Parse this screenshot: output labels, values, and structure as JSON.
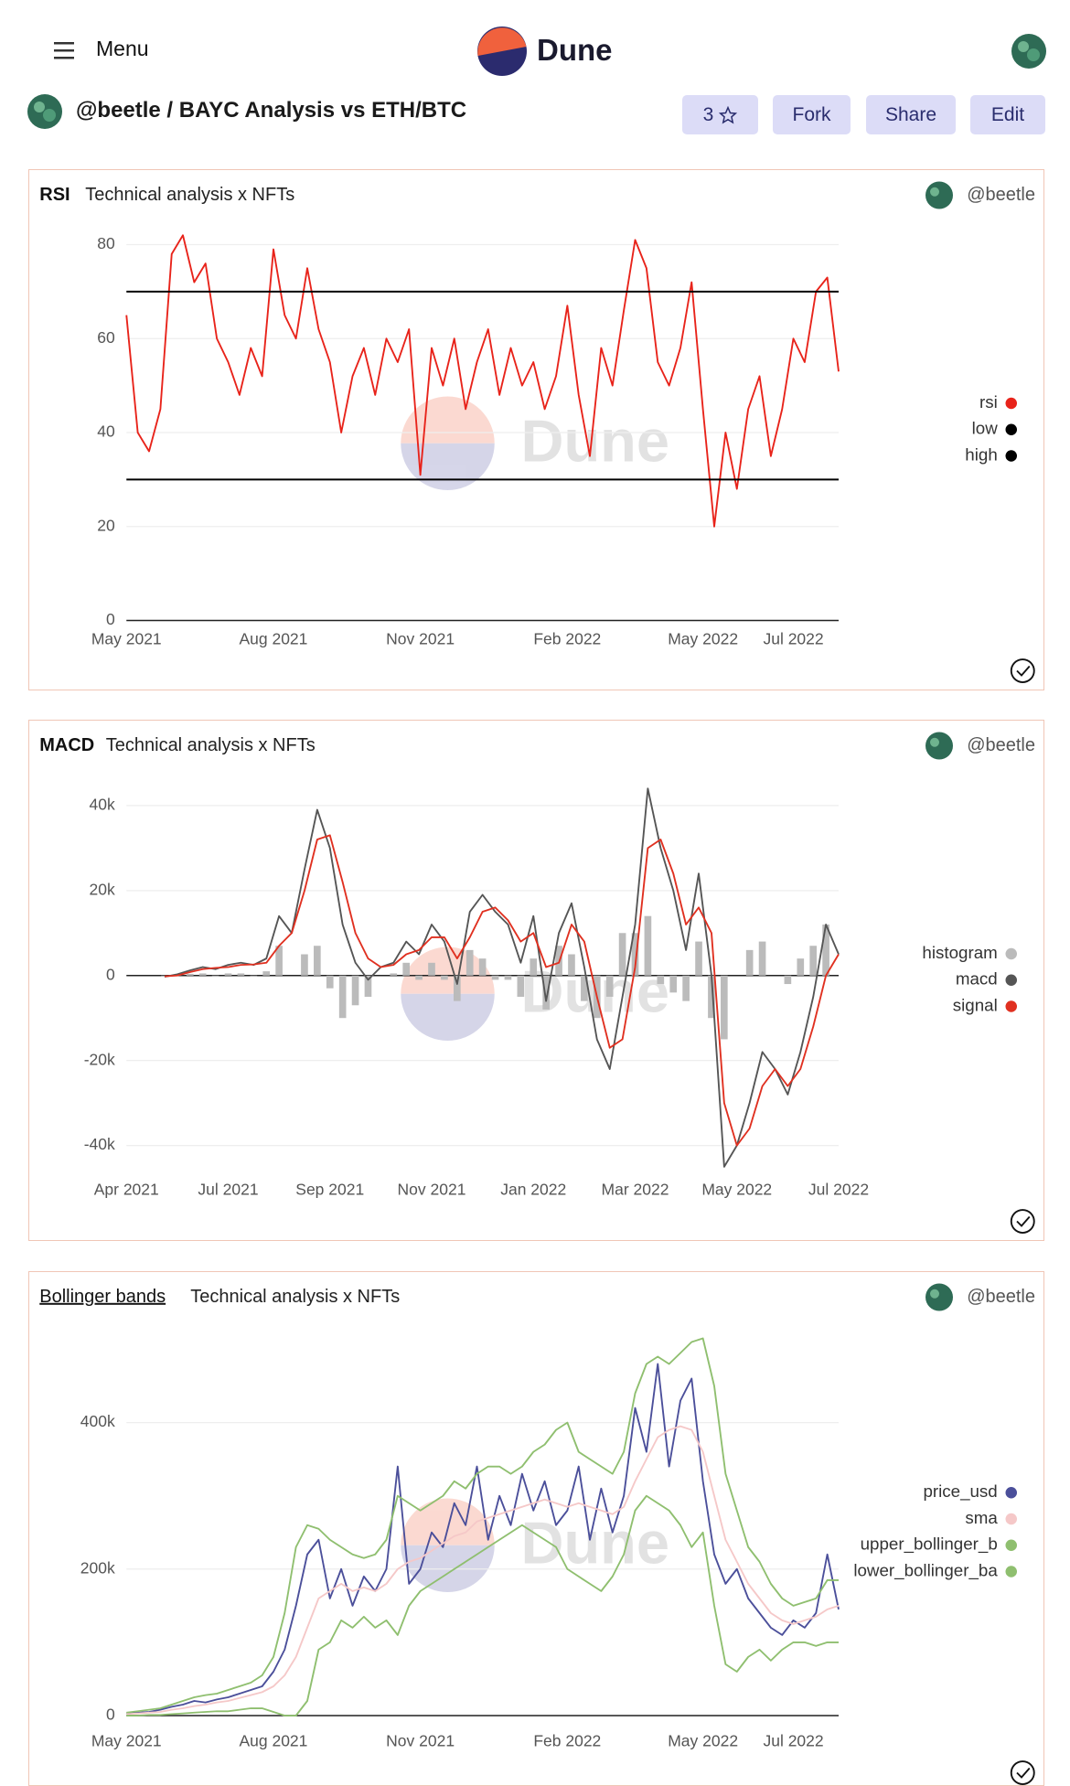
{
  "header": {
    "menu": "Menu",
    "logo": "Dune",
    "breadcrumb": "@beetle / BAYC Analysis vs ETH/BTC",
    "stars": "3",
    "buttons": [
      "Fork",
      "Share",
      "Edit"
    ]
  },
  "watermark": "Dune",
  "chart_data": [
    {
      "type": "line",
      "title": "RSI",
      "subtitle": "Technical analysis x NFTs",
      "author": "@beetle",
      "categories": [
        "May 2021",
        null,
        null,
        null,
        null,
        null,
        null,
        null,
        null,
        null,
        null,
        null,
        null,
        "Aug 2021",
        null,
        null,
        null,
        null,
        null,
        null,
        null,
        null,
        null,
        null,
        null,
        null,
        "Nov 2021",
        null,
        null,
        null,
        null,
        null,
        null,
        null,
        null,
        null,
        null,
        null,
        null,
        "Feb 2022",
        null,
        null,
        null,
        null,
        null,
        null,
        null,
        null,
        null,
        null,
        null,
        "May 2022",
        null,
        null,
        null,
        null,
        null,
        null,
        null,
        "Jul 2022",
        null,
        null,
        null,
        null
      ],
      "series": [
        {
          "name": "rsi",
          "color": "#e8231a",
          "values": [
            65,
            40,
            36,
            45,
            78,
            82,
            72,
            76,
            60,
            55,
            48,
            58,
            52,
            79,
            65,
            60,
            75,
            62,
            55,
            40,
            52,
            58,
            48,
            60,
            55,
            62,
            31,
            58,
            50,
            60,
            45,
            55,
            62,
            48,
            58,
            50,
            55,
            45,
            52,
            67,
            48,
            35,
            58,
            50,
            66,
            81,
            75,
            55,
            50,
            58,
            72,
            45,
            20,
            40,
            28,
            45,
            52,
            35,
            45,
            60,
            55,
            70,
            73,
            53
          ]
        },
        {
          "name": "low",
          "color": "#000000",
          "values": [
            30,
            30,
            30,
            30,
            30,
            30,
            30,
            30,
            30,
            30,
            30,
            30,
            30,
            30,
            30,
            30,
            30,
            30,
            30,
            30,
            30,
            30,
            30,
            30,
            30,
            30,
            30,
            30,
            30,
            30,
            30,
            30,
            30,
            30,
            30,
            30,
            30,
            30,
            30,
            30,
            30,
            30,
            30,
            30,
            30,
            30,
            30,
            30,
            30,
            30,
            30,
            30,
            30,
            30,
            30,
            30,
            30,
            30,
            30,
            30,
            30,
            30,
            30,
            30
          ]
        },
        {
          "name": "high",
          "color": "#000000",
          "values": [
            70,
            70,
            70,
            70,
            70,
            70,
            70,
            70,
            70,
            70,
            70,
            70,
            70,
            70,
            70,
            70,
            70,
            70,
            70,
            70,
            70,
            70,
            70,
            70,
            70,
            70,
            70,
            70,
            70,
            70,
            70,
            70,
            70,
            70,
            70,
            70,
            70,
            70,
            70,
            70,
            70,
            70,
            70,
            70,
            70,
            70,
            70,
            70,
            70,
            70,
            70,
            70,
            70,
            70,
            70,
            70,
            70,
            70,
            70,
            70,
            70,
            70,
            70,
            70
          ]
        }
      ],
      "ylim": [
        0,
        82
      ],
      "yticks": [
        0,
        20,
        40,
        60,
        80
      ],
      "grid": true
    },
    {
      "type": "line",
      "title": "MACD",
      "subtitle": "Technical analysis x NFTs",
      "author": "@beetle",
      "categories": [
        "Apr 2021",
        null,
        null,
        null,
        null,
        null,
        null,
        null,
        "Jul 2021",
        null,
        null,
        null,
        null,
        null,
        null,
        null,
        "Sep 2021",
        null,
        null,
        null,
        null,
        null,
        null,
        null,
        "Nov 2021",
        null,
        null,
        null,
        null,
        null,
        null,
        null,
        "Jan 2022",
        null,
        null,
        null,
        null,
        null,
        null,
        null,
        "Mar 2022",
        null,
        null,
        null,
        null,
        null,
        null,
        null,
        "May 2022",
        null,
        null,
        null,
        null,
        null,
        null,
        null,
        "Jul 2022"
      ],
      "series": [
        {
          "name": "histogram",
          "type": "bar",
          "color": "#bbbbbb",
          "values": [
            null,
            null,
            null,
            -100,
            300,
            400,
            500,
            -300,
            500,
            500,
            -100,
            1000,
            7000,
            0,
            5000,
            7000,
            -3000,
            -10000,
            -7000,
            -5000,
            0,
            500,
            3000,
            -1000,
            3000,
            -1000,
            -6000,
            6000,
            4000,
            -1000,
            -1000,
            -5000,
            4000,
            -8000,
            7000,
            5000,
            -6000,
            -10000,
            -5000,
            10000,
            10000,
            14000,
            -2000,
            -4000,
            -6000,
            8000,
            -10000,
            -15000,
            0,
            6000,
            8000,
            0,
            -2000,
            4000,
            7000,
            12000,
            0
          ]
        },
        {
          "name": "macd",
          "color": "#555555",
          "values": [
            null,
            null,
            null,
            -300,
            300,
            1200,
            2000,
            1500,
            2500,
            3000,
            2500,
            4000,
            14000,
            10000,
            25000,
            39000,
            30000,
            12000,
            3000,
            -1000,
            2000,
            3000,
            8000,
            5000,
            12000,
            8000,
            -2000,
            15000,
            19000,
            15000,
            12000,
            3000,
            14000,
            -6000,
            10000,
            17000,
            2000,
            -15000,
            -22000,
            -5000,
            12000,
            44000,
            30000,
            20000,
            6000,
            24000,
            0,
            -45000,
            -40000,
            -30000,
            -18000,
            -22000,
            -28000,
            -18000,
            -5000,
            12000,
            5000
          ]
        },
        {
          "name": "signal",
          "color": "#e03020",
          "values": [
            null,
            null,
            null,
            -200,
            0,
            800,
            1500,
            1800,
            2000,
            2500,
            2600,
            3000,
            7000,
            10000,
            20000,
            32000,
            33000,
            22000,
            10000,
            4000,
            2000,
            2500,
            5000,
            6000,
            9000,
            9000,
            4000,
            9000,
            15000,
            16000,
            13000,
            8000,
            10000,
            2000,
            3000,
            12000,
            8000,
            -5000,
            -17000,
            -15000,
            2000,
            30000,
            32000,
            24000,
            12000,
            16000,
            10000,
            -30000,
            -40000,
            -36000,
            -26000,
            -22000,
            -26000,
            -22000,
            -12000,
            0,
            5000
          ]
        }
      ],
      "ylim": [
        -46000,
        46000
      ],
      "yticks": [
        {
          "value": -40000,
          "label": "-40k"
        },
        {
          "value": -20000,
          "label": "-20k"
        },
        0,
        {
          "value": 20000,
          "label": "20k"
        },
        {
          "value": 40000,
          "label": "40k"
        }
      ],
      "grid": true
    },
    {
      "type": "line",
      "title": "Bollinger bands",
      "subtitle": "Technical analysis x NFTs",
      "author": "@beetle",
      "categories": [
        "May 2021",
        null,
        null,
        null,
        null,
        null,
        null,
        null,
        null,
        null,
        null,
        null,
        null,
        "Aug 2021",
        null,
        null,
        null,
        null,
        null,
        null,
        null,
        null,
        null,
        null,
        null,
        null,
        "Nov 2021",
        null,
        null,
        null,
        null,
        null,
        null,
        null,
        null,
        null,
        null,
        null,
        null,
        "Feb 2022",
        null,
        null,
        null,
        null,
        null,
        null,
        null,
        null,
        null,
        null,
        null,
        "May 2022",
        null,
        null,
        null,
        null,
        null,
        null,
        null,
        "Jul 2022",
        null,
        null,
        null,
        null
      ],
      "series": [
        {
          "name": "price_usd",
          "color": "#4b4f9a",
          "values": [
            3000,
            4000,
            5000,
            8000,
            12000,
            15000,
            20000,
            18000,
            22000,
            25000,
            30000,
            35000,
            40000,
            60000,
            90000,
            150000,
            220000,
            240000,
            160000,
            200000,
            150000,
            190000,
            170000,
            200000,
            340000,
            180000,
            200000,
            250000,
            230000,
            290000,
            260000,
            340000,
            240000,
            300000,
            260000,
            330000,
            280000,
            320000,
            260000,
            280000,
            340000,
            240000,
            310000,
            250000,
            300000,
            420000,
            360000,
            480000,
            340000,
            430000,
            460000,
            320000,
            220000,
            180000,
            200000,
            160000,
            140000,
            120000,
            110000,
            130000,
            120000,
            140000,
            220000,
            145000
          ]
        },
        {
          "name": "sma",
          "color": "#f5c8c8",
          "values": [
            2000,
            3000,
            4000,
            5000,
            8000,
            10000,
            13000,
            15000,
            18000,
            20000,
            24000,
            28000,
            32000,
            40000,
            55000,
            80000,
            120000,
            160000,
            170000,
            180000,
            170000,
            175000,
            170000,
            180000,
            200000,
            210000,
            215000,
            225000,
            235000,
            245000,
            250000,
            265000,
            270000,
            275000,
            280000,
            285000,
            290000,
            295000,
            290000,
            285000,
            290000,
            285000,
            280000,
            275000,
            285000,
            320000,
            350000,
            380000,
            390000,
            395000,
            390000,
            360000,
            300000,
            240000,
            210000,
            180000,
            160000,
            140000,
            130000,
            125000,
            130000,
            135000,
            145000,
            150000
          ]
        },
        {
          "name": "upper_bollinger_b",
          "color": "#8fbf6f",
          "values": [
            4000,
            6000,
            8000,
            10000,
            15000,
            20000,
            25000,
            28000,
            30000,
            35000,
            40000,
            45000,
            55000,
            80000,
            140000,
            230000,
            260000,
            255000,
            240000,
            230000,
            220000,
            215000,
            220000,
            240000,
            300000,
            290000,
            280000,
            290000,
            300000,
            320000,
            310000,
            330000,
            340000,
            340000,
            330000,
            340000,
            360000,
            370000,
            390000,
            400000,
            360000,
            350000,
            340000,
            330000,
            360000,
            440000,
            480000,
            490000,
            480000,
            495000,
            510000,
            515000,
            450000,
            330000,
            280000,
            230000,
            210000,
            180000,
            160000,
            150000,
            155000,
            160000,
            185000,
            185000
          ]
        },
        {
          "name": "lower_bollinger_ba",
          "color": "#8fbf6f",
          "values": [
            0,
            0,
            1000,
            1000,
            2000,
            3000,
            4000,
            5000,
            6000,
            6000,
            8000,
            10000,
            10000,
            5000,
            0,
            0,
            20000,
            90000,
            100000,
            130000,
            120000,
            135000,
            120000,
            130000,
            110000,
            150000,
            170000,
            180000,
            190000,
            200000,
            210000,
            220000,
            230000,
            240000,
            250000,
            260000,
            250000,
            240000,
            230000,
            200000,
            190000,
            180000,
            170000,
            190000,
            220000,
            280000,
            300000,
            290000,
            280000,
            260000,
            230000,
            250000,
            150000,
            70000,
            60000,
            80000,
            90000,
            75000,
            90000,
            100000,
            100000,
            95000,
            100000,
            100000
          ]
        }
      ],
      "ylim": [
        0,
        515000
      ],
      "yticks": [
        0,
        {
          "value": 200000,
          "label": "200k"
        },
        {
          "value": 400000,
          "label": "400k"
        }
      ],
      "grid": true
    }
  ]
}
